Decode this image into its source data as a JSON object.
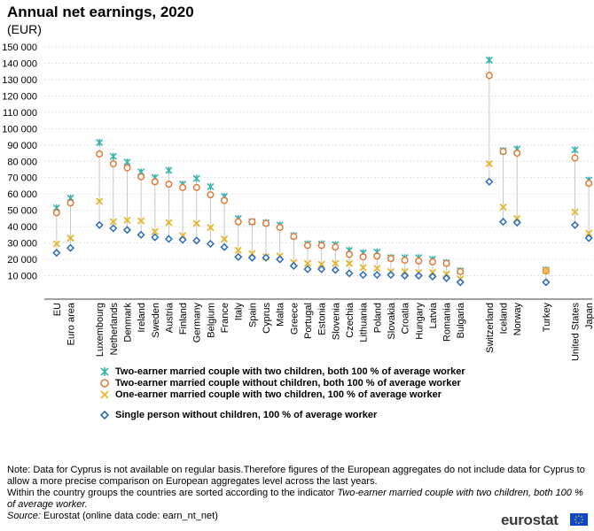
{
  "chart_data": {
    "type": "scatter",
    "title": "Annual net earnings, 2020",
    "subtitle": "(EUR)",
    "xlabel": "",
    "ylabel": "",
    "ylim": [
      0,
      150000
    ],
    "yticks": [
      "150 000",
      "140 000",
      "130 000",
      "120 000",
      "110 000",
      "100 000",
      "90 000",
      "80 000",
      "70 000",
      "60 000",
      "50 000",
      "40 000",
      "30 000",
      "20 000",
      "10 000"
    ],
    "ytick_values": [
      150000,
      140000,
      130000,
      120000,
      110000,
      100000,
      90000,
      80000,
      70000,
      60000,
      50000,
      40000,
      30000,
      20000,
      10000
    ],
    "categories": [
      "EU",
      "Euro area",
      "Luxembourg",
      "Netherlands",
      "Denmark",
      "Ireland",
      "Sweden",
      "Austria",
      "Finland",
      "Germany",
      "Belgium",
      "France",
      "Italy",
      "Spain",
      "Cyprus",
      "Malta",
      "Greece",
      "Portugal",
      "Estonia",
      "Slovenia",
      "Czechia",
      "Lithuania",
      "Poland",
      "Slovakia",
      "Croatia",
      "Hungary",
      "Latvia",
      "Romania",
      "Bulgaria",
      "Switzerland",
      "Iceland",
      "Norway",
      "Turkey",
      "United States",
      "Japan"
    ],
    "groups_before": [
      0,
      0,
      1,
      1,
      1,
      1,
      1,
      1,
      1,
      1,
      1,
      1,
      1,
      1,
      1,
      1,
      1,
      1,
      1,
      1,
      1,
      1,
      1,
      1,
      1,
      1,
      1,
      1,
      1,
      2,
      2,
      2,
      3,
      4,
      4
    ],
    "series": [
      {
        "name": "Two-earner married couple with two children, both 100 % of average worker",
        "marker": "star",
        "color": "#3cb4ae",
        "values": [
          51500,
          57500,
          91500,
          83000,
          79500,
          73500,
          70000,
          74500,
          66000,
          69500,
          64500,
          58500,
          45000,
          43000,
          42500,
          41000,
          34500,
          29500,
          29500,
          29000,
          25500,
          24000,
          24500,
          21000,
          21000,
          21000,
          20000,
          18000,
          13000,
          142000,
          86500,
          87500,
          13500,
          87000,
          68500
        ]
      },
      {
        "name": "Two-earner married couple without children, both 100 % of average worker",
        "marker": "circle",
        "color": "#e07b39",
        "values": [
          48500,
          54500,
          84500,
          78500,
          76000,
          70500,
          67500,
          66000,
          64000,
          64000,
          59500,
          56000,
          43000,
          43000,
          42000,
          39500,
          34000,
          28500,
          28500,
          27500,
          23000,
          21500,
          22000,
          20500,
          19500,
          19000,
          18500,
          17500,
          12500,
          132500,
          86000,
          85000,
          13000,
          82000,
          66500
        ]
      },
      {
        "name": "One-earner married couple with two children, 100 % of average worker",
        "marker": "cross",
        "color": "#e8b730",
        "values": [
          29500,
          33000,
          55500,
          43000,
          44000,
          43500,
          37000,
          42500,
          34500,
          42000,
          39500,
          32500,
          25500,
          23500,
          21500,
          22000,
          18000,
          17500,
          17000,
          17500,
          17500,
          15000,
          14500,
          12500,
          12500,
          12000,
          12000,
          11000,
          8000,
          78500,
          52000,
          45000,
          13000,
          49000,
          36000
        ]
      },
      {
        "name": "Single person without children, 100 % of average worker",
        "marker": "diamond",
        "color": "#2a6db5",
        "values": [
          24000,
          27000,
          41000,
          39000,
          38000,
          35000,
          33500,
          32500,
          32000,
          31500,
          29500,
          27500,
          21500,
          21000,
          21000,
          20000,
          16000,
          14000,
          14000,
          13500,
          11500,
          10500,
          10500,
          10500,
          10000,
          10000,
          9500,
          8500,
          6000,
          67500,
          43000,
          42500,
          6000,
          41000,
          33000
        ]
      }
    ]
  },
  "legend": {
    "item1": "Two-earner married couple with two children, both 100 % of average worker",
    "item2": "Two-earner married couple without children, both 100 % of average worker",
    "item3": "One-earner married couple with two children, 100 % of average worker",
    "item4": "Single person without children, 100 % of average worker"
  },
  "note": {
    "line1": "Note: Data for Cyprus is not available on regular basis.Therefore figures of the European aggregates do not include data for Cyprus to allow a more precise comparison on European aggregates level across the last years.",
    "line2_prefix": "Within the country groups the countries are sorted according to the indicator ",
    "line2_italic": "Two-earner married couple with two children, both 100 % of average worker.",
    "source_label": "Source:",
    "source_text": " Eurostat (online data code: earn_nt_net)"
  },
  "logo": {
    "text": "eurostat"
  }
}
